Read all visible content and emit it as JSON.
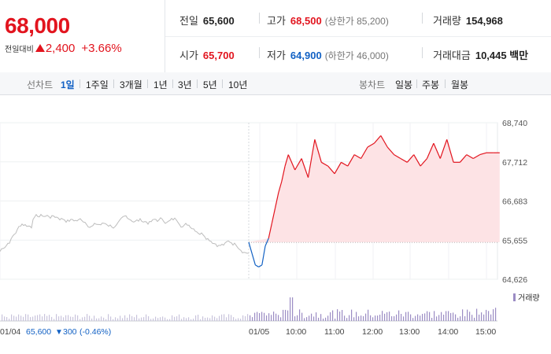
{
  "quote": {
    "price": "68,000",
    "change_label": "전일대비",
    "change_value": "2,400",
    "change_pct": "+3.66%",
    "stats": {
      "prev_close_label": "전일",
      "prev_close": "65,600",
      "high_label": "고가",
      "high": "68,500",
      "upper_limit": "(상한가 85,200)",
      "volume_label": "거래량",
      "volume": "154,968",
      "open_label": "시가",
      "open": "65,700",
      "low_label": "저가",
      "low": "64,900",
      "lower_limit": "(하한가 46,000)",
      "amount_label": "거래대금",
      "amount": "10,445 백만"
    }
  },
  "toolbar": {
    "line_label": "선차트",
    "line_periods": [
      "1일",
      "1주일",
      "3개월",
      "1년",
      "3년",
      "5년",
      "10년"
    ],
    "active_period": "1일",
    "candle_label": "봉차트",
    "candle_periods": [
      "일봉",
      "주봉",
      "월봉"
    ]
  },
  "colors": {
    "up": "#e2141e",
    "down": "#1261c4",
    "prev_day": "#bdbdbd",
    "volume": "#9b8cc4",
    "fill": "#fde3e5"
  },
  "chart_data": {
    "type": "line",
    "y_ticks": [
      "68,740",
      "67,712",
      "66,683",
      "65,655",
      "64,626"
    ],
    "ylim": [
      64626,
      68740
    ],
    "reference_price": 65600,
    "x_labels": [
      "01/04",
      "01/05",
      "10:00",
      "11:00",
      "12:00",
      "13:00",
      "14:00",
      "15:00"
    ],
    "prev_day_info": {
      "date": "01/04",
      "close": "65,600",
      "change": "300",
      "change_pct": "(-0.46%)"
    },
    "volume_label": "거래량",
    "series": [
      {
        "values_note": "",
        "x": [
          "09:00",
          "09:05",
          "09:10",
          "09:15",
          "09:20",
          "09:25",
          "09:30",
          "09:35",
          "09:40",
          "09:45",
          "09:50",
          "09:55",
          "10:00",
          "10:10",
          "10:20",
          "10:30",
          "10:40",
          "10:50",
          "11:00",
          "11:10",
          "11:20",
          "11:30",
          "11:40",
          "11:50",
          "12:00",
          "12:10",
          "12:20",
          "12:30",
          "12:40",
          "12:50",
          "13:00",
          "13:10",
          "13:20",
          "13:30",
          "13:40",
          "13:50",
          "14:00",
          "14:10",
          "14:20",
          "14:30",
          "14:40",
          "14:50",
          "15:00",
          "15:10",
          "15:20"
        ],
        "values": [
          65600,
          65300,
          65000,
          64950,
          65000,
          65500,
          65700,
          66100,
          66500,
          66900,
          67200,
          67600,
          67900,
          67500,
          67800,
          67300,
          68300,
          67700,
          67600,
          67400,
          67700,
          67600,
          67900,
          67800,
          68100,
          68200,
          68400,
          68100,
          67900,
          67800,
          67700,
          67900,
          67600,
          67800,
          68200,
          67800,
          68300,
          67700,
          67700,
          67900,
          67800,
          67900,
          67950,
          67950,
          67950
        ]
      }
    ]
  }
}
